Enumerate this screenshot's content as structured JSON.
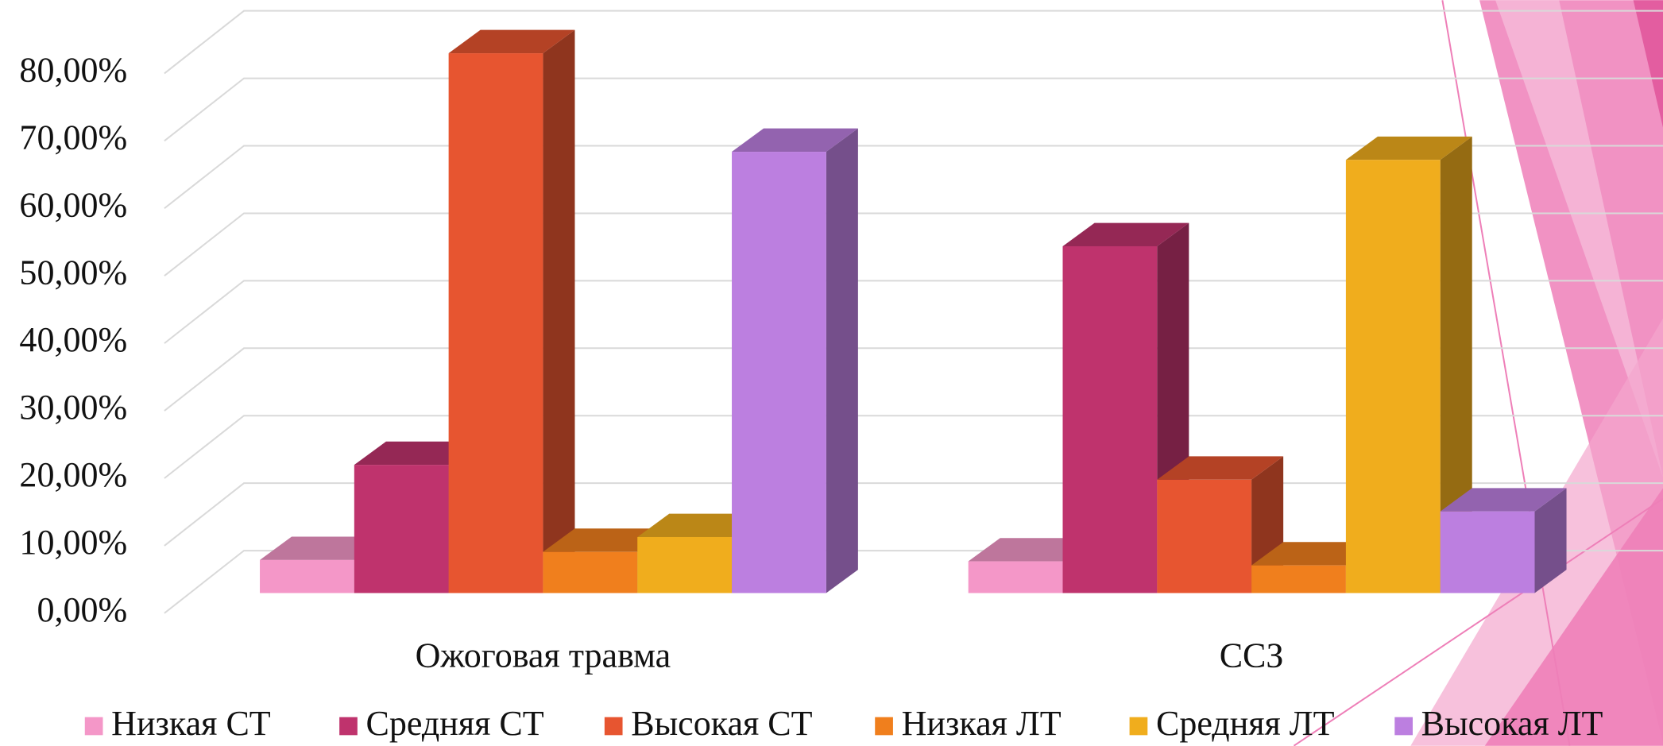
{
  "chart_data": {
    "type": "bar3d",
    "categories": [
      "Ожоговая травма",
      "ССЗ"
    ],
    "series": [
      {
        "name": "Низкая СТ",
        "color": "#f497c8",
        "values": [
          4.9,
          4.7
        ]
      },
      {
        "name": "Средняя СТ",
        "color": "#bf336d",
        "values": [
          19,
          51.4
        ]
      },
      {
        "name": "Высокая СТ",
        "color": "#e75530",
        "values": [
          80,
          16.8
        ]
      },
      {
        "name": "Низкая ЛТ",
        "color": "#f07f1d",
        "values": [
          6.1,
          4.1
        ]
      },
      {
        "name": "Средняя ЛТ",
        "color": "#f0ad1d",
        "values": [
          8.3,
          64.2
        ]
      },
      {
        "name": "Высокая ЛТ",
        "color": "#bc7fe0",
        "values": [
          65.4,
          12.1
        ]
      }
    ],
    "ylim": [
      0,
      80
    ],
    "yticks": [
      {
        "value": 0,
        "label": "0,00%"
      },
      {
        "value": 10,
        "label": "10,00%"
      },
      {
        "value": 20,
        "label": "20,00%"
      },
      {
        "value": 30,
        "label": "30,00%"
      },
      {
        "value": 40,
        "label": "40,00%"
      },
      {
        "value": 50,
        "label": "50,00%"
      },
      {
        "value": 60,
        "label": "60,00%"
      },
      {
        "value": 70,
        "label": "70,00%"
      },
      {
        "value": 80,
        "label": "80,00%"
      }
    ],
    "grid": true,
    "legend": "bottom"
  }
}
